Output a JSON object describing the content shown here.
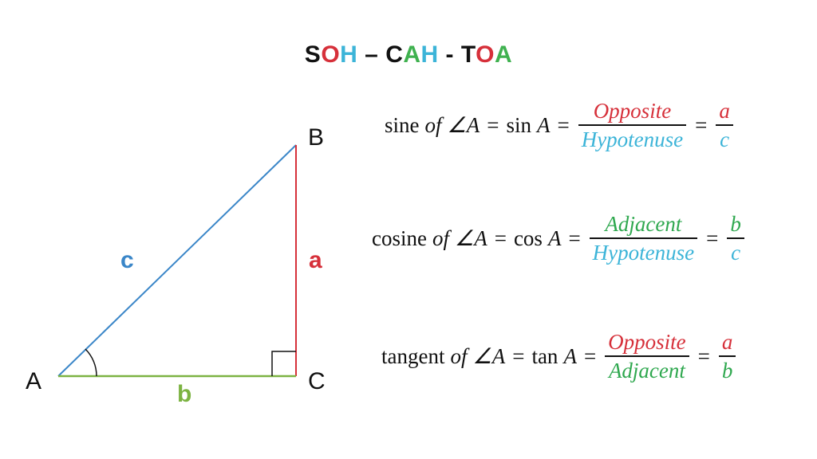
{
  "title": {
    "segments": [
      {
        "text": "S",
        "color": "#111111"
      },
      {
        "text": "O",
        "color": "#d6303a"
      },
      {
        "text": "H",
        "color": "#3cb4d8"
      },
      {
        "text": " – ",
        "color": "#111111"
      },
      {
        "text": "C",
        "color": "#111111"
      },
      {
        "text": "A",
        "color": "#3fb14f"
      },
      {
        "text": "H",
        "color": "#3cb4d8"
      },
      {
        "text": " - ",
        "color": "#111111"
      },
      {
        "text": "T",
        "color": "#111111"
      },
      {
        "text": "O",
        "color": "#d6303a"
      },
      {
        "text": "A",
        "color": "#3fb14f"
      }
    ]
  },
  "triangle": {
    "vertices": {
      "A": "A",
      "B": "B",
      "C": "C"
    },
    "sides": {
      "hypotenuse": {
        "label": "c",
        "color": "#3a86c8"
      },
      "opposite": {
        "label": "a",
        "color": "#d6303a"
      },
      "adjacent": {
        "label": "b",
        "color": "#7cb342"
      }
    },
    "line_colors": {
      "ab": "#3a86c8",
      "bc": "#d6303a",
      "ac": "#7cb342"
    }
  },
  "colors": {
    "opposite": "#d6303a",
    "hypotenuse": "#3cb4d8",
    "adjacent": "#2fa84f"
  },
  "formulas": {
    "sine": {
      "word": "sine",
      "of": "of",
      "angle": "∠A",
      "func": "sin",
      "var": "A",
      "num": "Opposite",
      "den": "Hypotenuse",
      "ratio_num": "a",
      "ratio_den": "c"
    },
    "cosine": {
      "word": "cosine",
      "of": "of",
      "angle": "∠A",
      "func": "cos",
      "var": "A",
      "num": "Adjacent",
      "den": "Hypotenuse",
      "ratio_num": "b",
      "ratio_den": "c"
    },
    "tangent": {
      "word": "tangent",
      "of": "of",
      "angle": "∠A",
      "func": "tan",
      "var": "A",
      "num": "Opposite",
      "den": "Adjacent",
      "ratio_num": "a",
      "ratio_den": "b"
    },
    "equals": "="
  }
}
